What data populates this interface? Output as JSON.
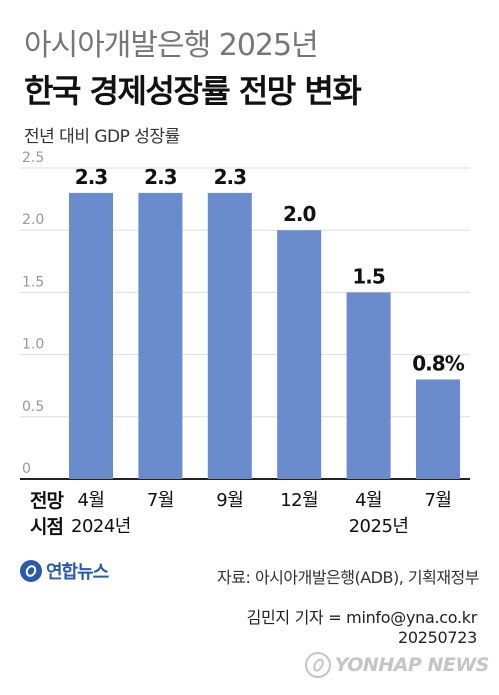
{
  "header": {
    "title_line1": "아시아개발은행 2025년",
    "title_line2": "한국 경제성장률 전망 변화",
    "subtitle": "전년 대비 GDP 성장률"
  },
  "chart_data": {
    "type": "bar",
    "categories": [
      "4월",
      "7월",
      "9월",
      "12월",
      "4월",
      "7월"
    ],
    "values": [
      2.3,
      2.3,
      2.3,
      2.0,
      1.5,
      0.8
    ],
    "value_labels": [
      "2.3",
      "2.3",
      "2.3",
      "2.0",
      "1.5",
      "0.8%"
    ],
    "year_labels": [
      {
        "text": "2024년",
        "category_index": 0
      },
      {
        "text": "2025년",
        "category_index": 4
      }
    ],
    "y_ticks": [
      "0",
      "0.5",
      "1.0",
      "1.5",
      "2.0",
      "2.5"
    ],
    "y_tick_values": [
      0,
      0.5,
      1.0,
      1.5,
      2.0,
      2.5
    ],
    "ylim": [
      0,
      2.5
    ],
    "x_axis_title_line1": "전망",
    "x_axis_title_line2": "시점",
    "grid": true,
    "bar_color": "#6a8bcc",
    "grid_color": "#dddddd"
  },
  "footer": {
    "logo_text": "연합뉴스",
    "source": "자료: 아시아개발은행(ADB), 기획재정부",
    "credit_line1": "김민지 기자 = minfo@yna.co.kr",
    "credit_line2": "20250723",
    "watermark_text": "YONHAP NEWS"
  }
}
